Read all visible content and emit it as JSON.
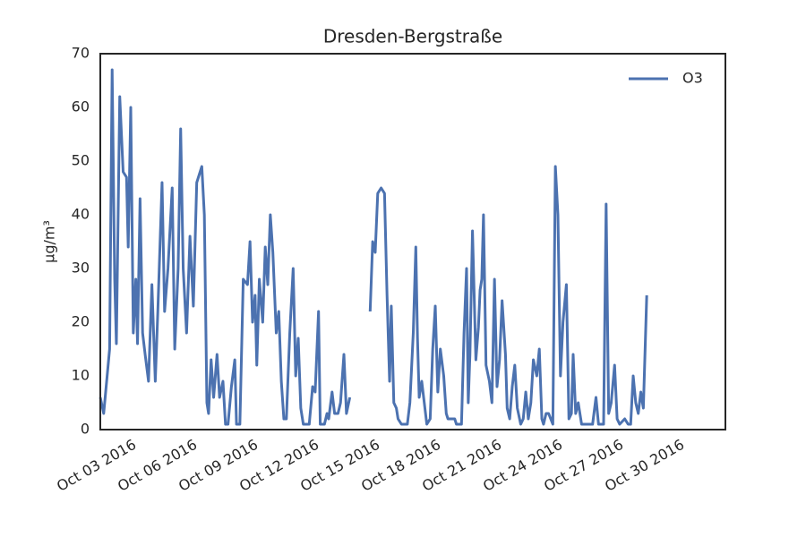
{
  "chart_data": {
    "type": "line",
    "title": "Dresden-Bergstraße",
    "y_label": "µg/m³",
    "legend": "upper right",
    "grid": false,
    "xlim": [
      "2016-10-01T10:00",
      "2016-11-01T05:00"
    ],
    "xticks": [
      {
        "value": "2016-10-03T00:00",
        "label": "Oct 03 2016"
      },
      {
        "value": "2016-10-06T00:00",
        "label": "Oct 06 2016"
      },
      {
        "value": "2016-10-09T00:00",
        "label": "Oct 09 2016"
      },
      {
        "value": "2016-10-12T00:00",
        "label": "Oct 12 2016"
      },
      {
        "value": "2016-10-15T00:00",
        "label": "Oct 15 2016"
      },
      {
        "value": "2016-10-18T00:00",
        "label": "Oct 18 2016"
      },
      {
        "value": "2016-10-21T00:00",
        "label": "Oct 21 2016"
      },
      {
        "value": "2016-10-24T00:00",
        "label": "Oct 24 2016"
      },
      {
        "value": "2016-10-27T00:00",
        "label": "Oct 27 2016"
      },
      {
        "value": "2016-10-30T00:00",
        "label": "Oct 30 2016"
      }
    ],
    "ylim": [
      0,
      70
    ],
    "yticks": [
      0,
      10,
      20,
      30,
      40,
      50,
      60,
      70
    ],
    "x": [
      "2016-10-01T10:00",
      "2016-10-01T14:00",
      "2016-10-01T21:00",
      "2016-10-02T00:00",
      "2016-10-02T03:00",
      "2016-10-02T05:00",
      "2016-10-02T09:00",
      "2016-10-02T13:00",
      "2016-10-02T17:00",
      "2016-10-02T19:00",
      "2016-10-02T22:00",
      "2016-10-03T01:00",
      "2016-10-03T04:00",
      "2016-10-03T06:00",
      "2016-10-03T09:00",
      "2016-10-03T12:00",
      "2016-10-03T15:00",
      "2016-10-03T19:00",
      "2016-10-03T23:00",
      "2016-10-04T03:00",
      "2016-10-04T06:00",
      "2016-10-04T11:00",
      "2016-10-04T14:00",
      "2016-10-04T18:00",
      "2016-10-04T23:00",
      "2016-10-05T02:00",
      "2016-10-05T06:00",
      "2016-10-05T09:00",
      "2016-10-05T12:00",
      "2016-10-05T16:00",
      "2016-10-05T20:00",
      "2016-10-06T00:00",
      "2016-10-06T04:00",
      "2016-10-06T10:00",
      "2016-10-06T13:00",
      "2016-10-06T16:00",
      "2016-10-06T18:00",
      "2016-10-06T21:00",
      "2016-10-07T00:00",
      "2016-10-07T04:00",
      "2016-10-07T07:00",
      "2016-10-07T11:00",
      "2016-10-07T14:00",
      "2016-10-07T17:00",
      "2016-10-07T21:00",
      "2016-10-08T01:00",
      "2016-10-08T03:00",
      "2016-10-08T07:00",
      "2016-10-08T11:00",
      "2016-10-08T16:00",
      "2016-10-08T19:00",
      "2016-10-08T22:00",
      "2016-10-09T01:00",
      "2016-10-09T03:00",
      "2016-10-09T06:00",
      "2016-10-09T10:00",
      "2016-10-09T13:00",
      "2016-10-09T16:00",
      "2016-10-09T19:00",
      "2016-10-09T22:00",
      "2016-10-10T02:00",
      "2016-10-10T05:00",
      "2016-10-10T08:00",
      "2016-10-10T11:00",
      "2016-10-10T14:00",
      "2016-10-10T18:00",
      "2016-10-10T22:00",
      "2016-10-11T01:00",
      "2016-10-11T04:00",
      "2016-10-11T07:00",
      "2016-10-11T10:00",
      "2016-10-11T17:00",
      "2016-10-11T21:00",
      "2016-10-12T00:00",
      "2016-10-12T04:00",
      "2016-10-12T06:00",
      "2016-10-12T11:00",
      "2016-10-12T14:00",
      "2016-10-12T16:00",
      "2016-10-12T20:00",
      "2016-10-12T23:00",
      "2016-10-13T03:00",
      "2016-10-13T06:00",
      "2016-10-13T10:00",
      "2016-10-13T13:00",
      "2016-10-13T17:00",
      "2016-10-14T12:00",
      "2016-10-14T17:00",
      "2016-10-14T20:00",
      "2016-10-14T23:00",
      "2016-10-15T02:00",
      "2016-10-15T06:00",
      "2016-10-15T10:00",
      "2016-10-15T13:00",
      "2016-10-15T16:00",
      "2016-10-15T18:00",
      "2016-10-15T21:00",
      "2016-10-16T00:00",
      "2016-10-16T02:00",
      "2016-10-16T06:00",
      "2016-10-16T13:00",
      "2016-10-16T16:00",
      "2016-10-16T20:00",
      "2016-10-16T23:00",
      "2016-10-17T01:00",
      "2016-10-17T03:00",
      "2016-10-17T06:00",
      "2016-10-17T09:00",
      "2016-10-17T12:00",
      "2016-10-17T16:00",
      "2016-10-17T19:00",
      "2016-10-17T22:00",
      "2016-10-18T01:00",
      "2016-10-18T04:00",
      "2016-10-18T08:00",
      "2016-10-18T11:00",
      "2016-10-18T13:00",
      "2016-10-18T21:00",
      "2016-10-18T23:00",
      "2016-10-19T05:00",
      "2016-10-19T08:00",
      "2016-10-19T11:00",
      "2016-10-19T13:00",
      "2016-10-19T15:00",
      "2016-10-19T18:00",
      "2016-10-19T22:00",
      "2016-10-20T01:00",
      "2016-10-20T03:00",
      "2016-10-20T05:00",
      "2016-10-20T07:00",
      "2016-10-20T10:00",
      "2016-10-20T14:00",
      "2016-10-20T17:00",
      "2016-10-20T20:00",
      "2016-10-20T23:00",
      "2016-10-21T02:00",
      "2016-10-21T05:00",
      "2016-10-21T09:00",
      "2016-10-21T11:00",
      "2016-10-21T14:00",
      "2016-10-21T17:00",
      "2016-10-21T20:00",
      "2016-10-21T23:00",
      "2016-10-22T03:00",
      "2016-10-22T06:00",
      "2016-10-22T09:00",
      "2016-10-22T12:00",
      "2016-10-22T15:00",
      "2016-10-22T18:00",
      "2016-10-22T22:00",
      "2016-10-23T01:00",
      "2016-10-23T04:00",
      "2016-10-23T06:00",
      "2016-10-23T09:00",
      "2016-10-23T12:00",
      "2016-10-23T17:00",
      "2016-10-23T20:00",
      "2016-10-23T23:00",
      "2016-10-24T02:00",
      "2016-10-24T05:00",
      "2016-10-24T09:00",
      "2016-10-24T12:00",
      "2016-10-24T15:00",
      "2016-10-24T17:00",
      "2016-10-24T20:00",
      "2016-10-24T23:00",
      "2016-10-25T03:00",
      "2016-10-25T16:00",
      "2016-10-25T20:00",
      "2016-10-25T23:00",
      "2016-10-26T05:00",
      "2016-10-26T08:00",
      "2016-10-26T11:00",
      "2016-10-26T14:00",
      "2016-10-26T18:00",
      "2016-10-26T21:00",
      "2016-10-27T00:00",
      "2016-10-27T06:00",
      "2016-10-27T10:00",
      "2016-10-27T13:00",
      "2016-10-27T16:00",
      "2016-10-27T19:00",
      "2016-10-27T22:00",
      "2016-10-28T01:00",
      "2016-10-28T04:00",
      "2016-10-28T08:00"
    ],
    "series": [
      {
        "name": "O3",
        "color": "#4c72b0",
        "values": [
          6,
          3,
          15,
          67,
          28,
          16,
          62,
          48,
          47,
          34,
          60,
          18,
          28,
          16,
          43,
          18,
          14,
          9,
          27,
          9,
          22,
          46,
          22,
          30,
          45,
          15,
          30,
          56,
          30,
          18,
          36,
          23,
          46,
          49,
          40,
          5,
          3,
          13,
          6,
          14,
          6,
          9,
          1,
          1,
          8,
          13,
          1,
          1,
          28,
          27,
          35,
          20,
          25,
          12,
          28,
          20,
          34,
          27,
          40,
          33,
          18,
          22,
          9,
          2,
          2,
          18,
          30,
          10,
          17,
          4,
          1,
          1,
          8,
          7,
          22,
          1,
          1,
          3,
          2,
          7,
          3,
          3,
          5,
          14,
          3,
          6,
          null,
          22,
          35,
          33,
          44,
          45,
          44,
          25,
          9,
          23,
          5,
          4,
          2,
          1,
          1,
          5,
          18,
          34,
          17,
          6,
          9,
          5,
          1,
          2,
          15,
          23,
          7,
          15,
          10,
          3,
          2,
          2,
          1,
          1,
          18,
          30,
          5,
          14,
          37,
          13,
          19,
          26,
          28,
          40,
          12,
          9,
          5,
          28,
          8,
          13,
          24,
          14,
          4,
          2,
          8,
          12,
          4,
          1,
          2,
          7,
          2,
          5,
          13,
          10,
          15,
          2,
          1,
          3,
          3,
          1,
          49,
          40,
          10,
          20,
          27,
          2,
          3,
          14,
          3,
          5,
          1,
          1,
          6,
          1,
          1,
          42,
          3,
          5,
          12,
          2,
          1,
          2,
          1,
          1,
          10,
          5,
          3,
          7,
          4,
          25
        ]
      }
    ]
  }
}
